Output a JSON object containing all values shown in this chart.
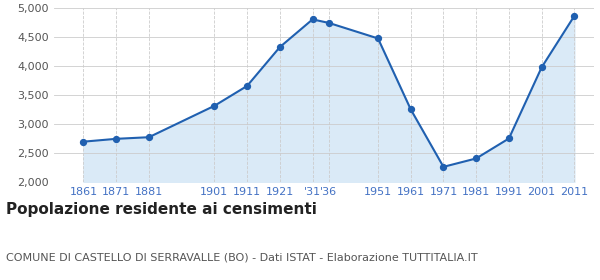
{
  "years": [
    1861,
    1871,
    1881,
    1901,
    1911,
    1921,
    1931,
    1936,
    1951,
    1961,
    1971,
    1981,
    1991,
    2001,
    2011
  ],
  "population": [
    2697,
    2746,
    2774,
    3316,
    3660,
    4331,
    4810,
    4749,
    4481,
    3255,
    2262,
    2407,
    2752,
    3981,
    4871
  ],
  "ylim": [
    2000,
    5000
  ],
  "yticks": [
    2000,
    2500,
    3000,
    3500,
    4000,
    4500,
    5000
  ],
  "line_color": "#2060b0",
  "fill_color": "#daeaf7",
  "marker_color": "#2060b0",
  "bg_color": "#ffffff",
  "grid_color": "#cccccc",
  "title": "Popolazione residente ai censimenti",
  "subtitle": "COMUNE DI CASTELLO DI SERRAVALLE (BO) - Dati ISTAT - Elaborazione TUTTITALIA.IT",
  "title_fontsize": 11,
  "subtitle_fontsize": 8,
  "tick_fontsize": 8,
  "x_tick_positions": [
    1861,
    1871,
    1881,
    1901,
    1911,
    1921,
    1931,
    1936,
    1951,
    1961,
    1971,
    1981,
    1991,
    2001,
    2011
  ],
  "x_tick_labels": [
    "1861",
    "1871",
    "1881",
    "1901",
    "1911",
    "1921",
    "'31",
    "'36",
    "1951",
    "1961",
    "1971",
    "1981",
    "1991",
    "2001",
    "2011"
  ],
  "tick_color": "#4472c4",
  "ytick_color": "#555555",
  "xlim_left": 1852,
  "xlim_right": 2017
}
